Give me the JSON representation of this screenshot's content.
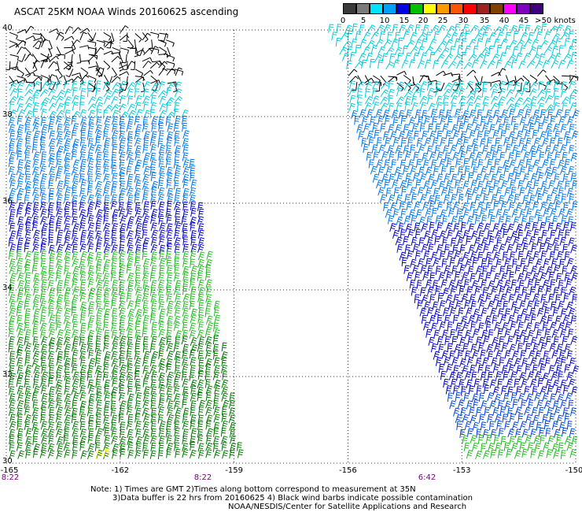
{
  "title": "ASCAT 25KM NOAA Winds 20160625 ascending",
  "colorbar": {
    "labels": [
      "0",
      "5",
      "10",
      "15",
      "20",
      "25",
      "30",
      "35",
      "40",
      "45",
      ">50 knots"
    ],
    "colors": [
      "#3a3a3a",
      "#7a7a7a",
      "#00e5ff",
      "#00a0ff",
      "#0000e0",
      "#00c000",
      "#ffff00",
      "#ff9900",
      "#ff5500",
      "#ff0000",
      "#a02020",
      "#804000",
      "#ff00ff",
      "#8000c0",
      "#400080"
    ]
  },
  "lat_labels": [
    "40",
    "38",
    "36",
    "34",
    "32",
    "30"
  ],
  "lon_labels": [
    "-165",
    "-162",
    "-159",
    "-156",
    "-153",
    "-150"
  ],
  "time_labels": [
    "8:22",
    "8:22",
    "6:42"
  ],
  "notes": {
    "line1": "Note: 1) Times are GMT 2)Times along bottom correspond to measurement at 35N",
    "line2": "3)Data buffer is 22 hrs from 20160625 4) Black wind barbs indicate possible contamination",
    "line3": "NOAA/NESDIS/Center for Satellite Applications and Research"
  },
  "map": {
    "lat_range": [
      30,
      40
    ],
    "lon_range": [
      -165,
      -150
    ],
    "gridlines": "dotted",
    "swaths": [
      {
        "name": "west",
        "regions": [
          {
            "color": "#000000",
            "lat": [
              38.7,
              40
            ]
          },
          {
            "color": "#00ccdd",
            "lat": [
              37.9,
              38.7
            ]
          },
          {
            "color": "#0077ee",
            "lat": [
              35.9,
              37.9
            ]
          },
          {
            "color": "#0000cc",
            "lat": [
              34.8,
              35.9
            ]
          },
          {
            "color": "#22bb22",
            "lat": [
              32.8,
              34.8
            ]
          },
          {
            "color": "#007700",
            "lat": [
              30,
              32.8
            ]
          }
        ]
      },
      {
        "name": "east",
        "regions": [
          {
            "color": "#00ccdd",
            "lat": [
              39.1,
              40
            ]
          },
          {
            "color": "#000000",
            "lat": [
              38.7,
              39.6
            ]
          },
          {
            "color": "#00ccdd",
            "lat": [
              38.0,
              38.7
            ]
          },
          {
            "color": "#0077ee",
            "lat": [
              35.5,
              38.0
            ]
          },
          {
            "color": "#0000cc",
            "lat": [
              31.5,
              35.5
            ]
          },
          {
            "color": "#0044dd",
            "lat": [
              30.6,
              31.5
            ]
          },
          {
            "color": "#22bb22",
            "lat": [
              30,
              30.6
            ]
          }
        ]
      }
    ]
  }
}
